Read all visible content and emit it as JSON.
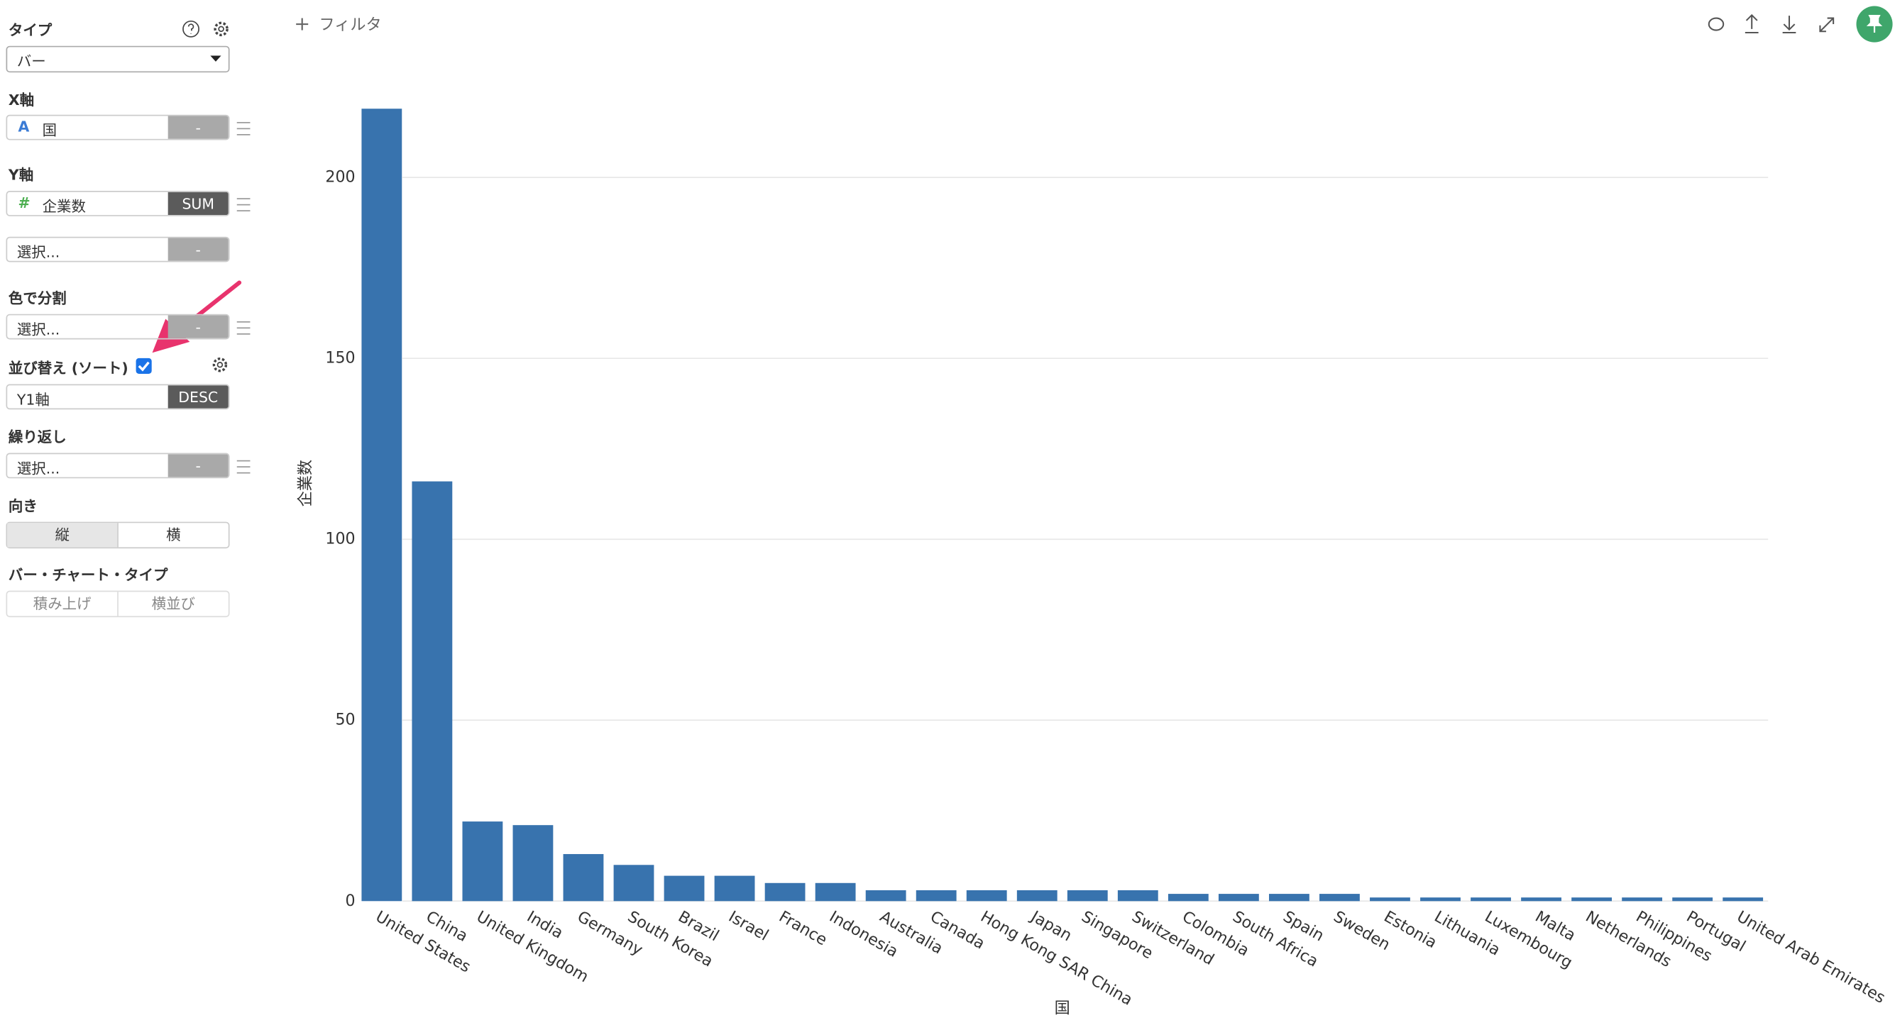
{
  "sidebar": {
    "type_label": "タイプ",
    "type_value": "バー",
    "x_label": "X軸",
    "x_icon": "A",
    "x_field": "国",
    "x_agg": "-",
    "y_label": "Y軸",
    "y_icon": "#",
    "y_field": "企業数",
    "y_agg": "SUM",
    "y2_field": "選択...",
    "y2_agg": "-",
    "color_label": "色で分割",
    "color_field": "選択...",
    "color_agg": "-",
    "sort_label": "並び替え (ソート)",
    "sort_field": "Y1軸",
    "sort_order": "DESC",
    "repeat_label": "繰り返し",
    "repeat_field": "選択...",
    "repeat_agg": "-",
    "orient_label": "向き",
    "orient_options": [
      "縦",
      "横"
    ],
    "bar_type_label": "バー・チャート・タイプ",
    "bar_type_options": [
      "積み上げ",
      "横並び"
    ]
  },
  "toolbar": {
    "filter": "フィルタ"
  },
  "chart_data": {
    "type": "bar",
    "x_label": "国",
    "y_label": "企業数",
    "color": "#3873ae",
    "categories": [
      "United States",
      "China",
      "United Kingdom",
      "India",
      "Germany",
      "South Korea",
      "Brazil",
      "Israel",
      "France",
      "Indonesia",
      "Australia",
      "Canada",
      "Hong Kong SAR China",
      "Japan",
      "Singapore",
      "Switzerland",
      "Colombia",
      "South Africa",
      "Spain",
      "Sweden",
      "Estonia",
      "Lithuania",
      "Luxembourg",
      "Malta",
      "Netherlands",
      "Philippines",
      "Portugal",
      "United Arab Emirates"
    ],
    "values": [
      219,
      116,
      22,
      21,
      13,
      10,
      7,
      7,
      5,
      5,
      3,
      3,
      3,
      3,
      3,
      3,
      2,
      2,
      2,
      2,
      1,
      1,
      1,
      1,
      1,
      1,
      1,
      1
    ],
    "ylim": [
      0,
      220
    ],
    "yticks": [
      0,
      50,
      100,
      150,
      200
    ],
    "grid": true
  }
}
